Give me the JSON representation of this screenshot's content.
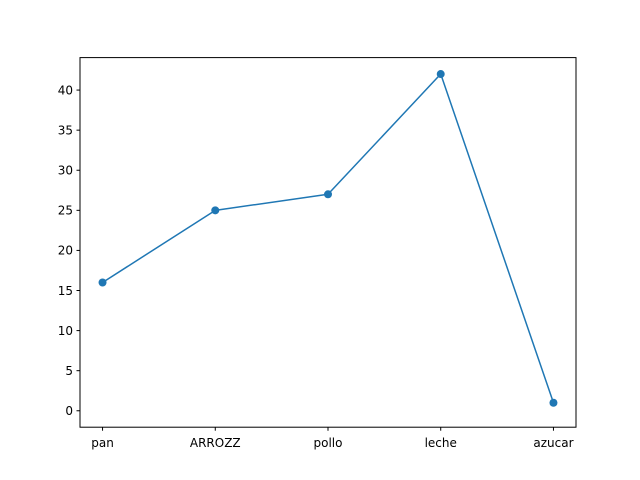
{
  "chart_data": {
    "type": "line",
    "categories": [
      "pan",
      "ARROZZ",
      "pollo",
      "leche",
      "azucar"
    ],
    "series": [
      {
        "values": [
          16,
          25,
          27,
          42,
          1
        ]
      }
    ],
    "title": "",
    "xlabel": "",
    "ylabel": "",
    "ylim": [
      -2.05,
      44.05
    ],
    "yticks": [
      0,
      5,
      10,
      15,
      20,
      25,
      30,
      35,
      40
    ],
    "grid": false,
    "legend": "none",
    "colors": {
      "line": "#1f77b4",
      "marker": "#1f77b4",
      "axes": "#000000",
      "background": "#ffffff"
    }
  }
}
